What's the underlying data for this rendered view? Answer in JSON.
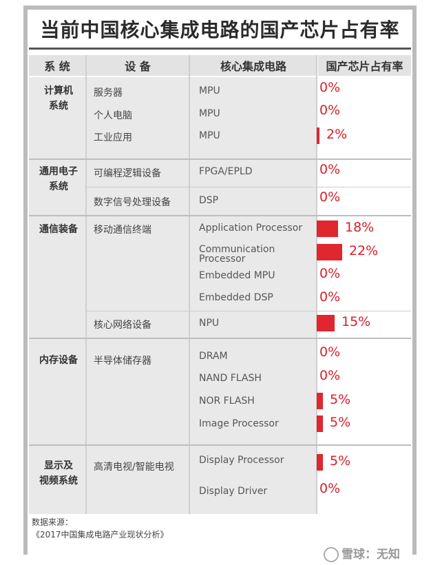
{
  "title": "当前中国核心集成电路的国产芯片占有率",
  "headers": [
    "系 统",
    "设 备",
    "核心集成电路",
    "国产芯片占有率"
  ],
  "source_label": "数据来源：",
  "source_text": "《2017中国集成电路产业现状分析》",
  "watermark": "雪球：无知",
  "colors": {
    "bar": "#e0262f",
    "header_bg": "#e3e3e3",
    "cell_bg": "#e9e9e9"
  },
  "chart_data": {
    "type": "table",
    "columns": [
      "系 统",
      "设 备",
      "核心集成电路",
      "国产芯片占有率"
    ],
    "systems": [
      {
        "name": "计算机系统",
        "lines": [
          "计算机",
          "系统"
        ]
      },
      {
        "name": "通用电子系统",
        "lines": [
          "通用电子",
          "系统"
        ]
      },
      {
        "name": "通信装备",
        "lines": [
          "通信装备"
        ]
      },
      {
        "name": "内存设备",
        "lines": [
          "内存设备"
        ]
      },
      {
        "name": "显示及视频系统",
        "lines": [
          "显示及",
          "视频系统"
        ]
      }
    ],
    "devices": [
      "服务器",
      "个人电脑",
      "工业应用",
      "可编程逻辑设备",
      "数字信号处理设备",
      "移动通信终端",
      "核心网络设备",
      "半导体储存器",
      "高清电视/智能电视"
    ],
    "rows": [
      {
        "system": "计算机系统",
        "device": "服务器",
        "circuit": "MPU",
        "share": 0,
        "label": "0%"
      },
      {
        "system": "计算机系统",
        "device": "个人电脑",
        "circuit": "MPU",
        "share": 0,
        "label": "0%"
      },
      {
        "system": "计算机系统",
        "device": "工业应用",
        "circuit": "MPU",
        "share": 2,
        "label": "2%"
      },
      {
        "system": "通用电子系统",
        "device": "可编程逻辑设备",
        "circuit": "FPGA/EPLD",
        "share": 0,
        "label": "0%"
      },
      {
        "system": "通用电子系统",
        "device": "数字信号处理设备",
        "circuit": "DSP",
        "share": 0,
        "label": "0%"
      },
      {
        "system": "通信装备",
        "device": "移动通信终端",
        "circuit": "Application Processor",
        "share": 18,
        "label": "18%"
      },
      {
        "system": "通信装备",
        "device": "移动通信终端",
        "circuit": "Communication Processor",
        "circuit_lines": [
          "Communication",
          "Processor"
        ],
        "share": 22,
        "label": "22%"
      },
      {
        "system": "通信装备",
        "device": "移动通信终端",
        "circuit": "Embedded MPU",
        "share": 0,
        "label": "0%"
      },
      {
        "system": "通信装备",
        "device": "移动通信终端",
        "circuit": "Embedded DSP",
        "share": 0,
        "label": "0%"
      },
      {
        "system": "通信装备",
        "device": "核心网络设备",
        "circuit": "NPU",
        "share": 15,
        "label": "15%"
      },
      {
        "system": "内存设备",
        "device": "半导体储存器",
        "circuit": "DRAM",
        "share": 0,
        "label": "0%"
      },
      {
        "system": "内存设备",
        "device": "半导体储存器",
        "circuit": "NAND FLASH",
        "share": 0,
        "label": "0%"
      },
      {
        "system": "内存设备",
        "device": "半导体储存器",
        "circuit": "NOR FLASH",
        "share": 5,
        "label": "5%"
      },
      {
        "system": "内存设备",
        "device": "半导体储存器",
        "circuit": "Image Processor",
        "share": 5,
        "label": "5%"
      },
      {
        "system": "显示及视频系统",
        "device": "高清电视/智能电视",
        "circuit": "Display Processor",
        "share": 5,
        "label": "5%"
      },
      {
        "system": "显示及视频系统",
        "device": "高清电视/智能电视",
        "circuit": "Display Driver",
        "share": 0,
        "label": "0%"
      }
    ],
    "value_unit": "%"
  }
}
